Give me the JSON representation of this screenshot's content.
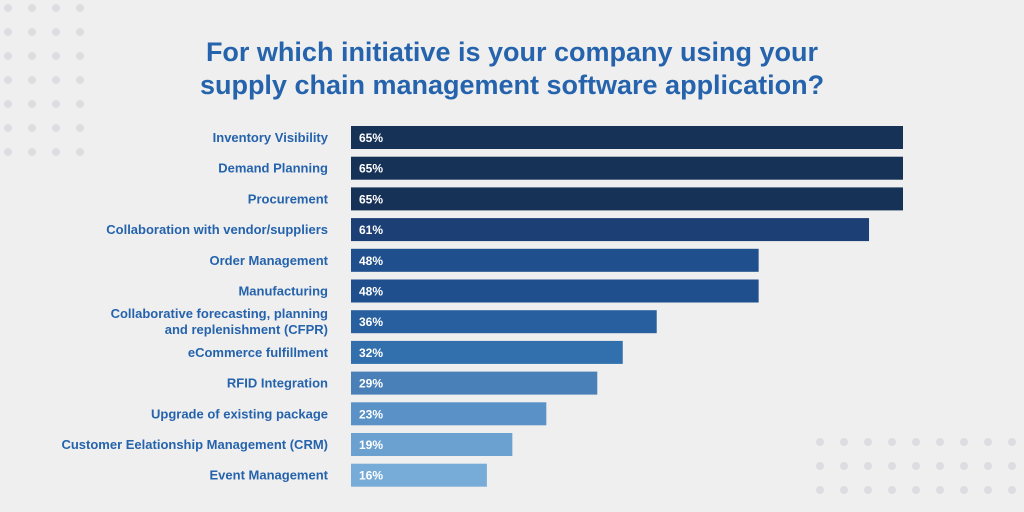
{
  "chart_data": {
    "type": "bar",
    "orientation": "horizontal",
    "title": "For which initiative is your company using your supply chain management software application?",
    "title_lines": [
      "For which initiative is your company using your",
      "supply chain management software application?"
    ],
    "unit": "%",
    "xlim": [
      0,
      65
    ],
    "categories": [
      [
        "Inventory Visibility"
      ],
      [
        "Demand Planning"
      ],
      [
        "Procurement"
      ],
      [
        "Collaboration with vendor/suppliers"
      ],
      [
        "Order Management"
      ],
      [
        "Manufacturing"
      ],
      [
        "Collaborative forecasting, planning",
        "and replenishment (CFPR)"
      ],
      [
        "eCommerce fulfillment"
      ],
      [
        "RFID Integration"
      ],
      [
        "Upgrade of existing package"
      ],
      [
        "Customer Eelationship Management (CRM)"
      ],
      [
        "Event Management"
      ]
    ],
    "values": [
      65,
      65,
      65,
      61,
      48,
      48,
      36,
      32,
      29,
      23,
      19,
      16
    ],
    "value_labels": [
      "65%",
      "65%",
      "65%",
      "61%",
      "48%",
      "48%",
      "36%",
      "32%",
      "29%",
      "23%",
      "19%",
      "16%"
    ],
    "bar_colors": [
      "#163257",
      "#163257",
      "#163257",
      "#1c3f75",
      "#1f4f8c",
      "#1f4f8c",
      "#28609f",
      "#3270ad",
      "#4a80b8",
      "#5a91c6",
      "#6ba1d1",
      "#78acd8"
    ]
  },
  "colors": {
    "title": "#2563ad",
    "background": "#efefef",
    "dots": "#dcdde1"
  }
}
